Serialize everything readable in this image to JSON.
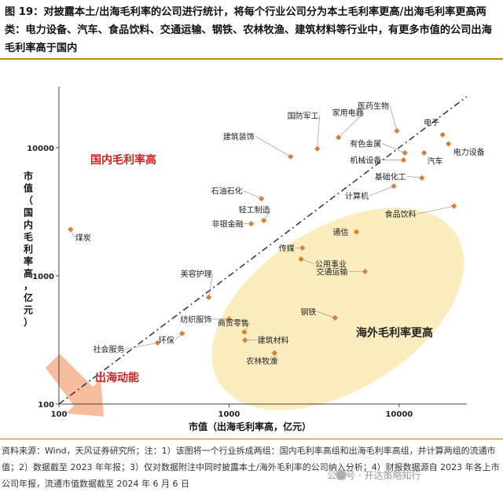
{
  "header": {
    "title": "图 19：对披露本土/出海毛利率的公司进行统计，将每个行业公司分为本土毛利率更高/出海毛利率更高两类：电力设备、汽车、食品饮料、交通运输、钢铁、农林牧渔、建筑材料等行业中，有更多市值的公司出海毛利率高于国内"
  },
  "chart_data": {
    "type": "scatter",
    "x_scale": "log",
    "y_scale": "log",
    "xlim": [
      100,
      25000
    ],
    "ylim": [
      100,
      30000
    ],
    "xlabel": "市值（出海毛利率高，亿元）",
    "ylabel": "市值（国内毛利率高，亿元）",
    "x_ticks": [
      {
        "value": 100,
        "label": "100"
      },
      {
        "value": 1000,
        "label": "1000"
      },
      {
        "value": 10000,
        "label": "10000"
      }
    ],
    "y_ticks": [
      {
        "value": 100,
        "label": "100"
      },
      {
        "value": 1000,
        "label": "1000"
      },
      {
        "value": 10000,
        "label": "10000"
      }
    ],
    "points": [
      {
        "name": "国防军工",
        "x": 3300,
        "y": 9800
      },
      {
        "name": "家用电器",
        "x": 4400,
        "y": 12000
      },
      {
        "name": "医药生物",
        "x": 9700,
        "y": 13500
      },
      {
        "name": "电子",
        "x": 18000,
        "y": 12600
      },
      {
        "name": "电力设备",
        "x": 19500,
        "y": 10700
      },
      {
        "name": "建筑装饰",
        "x": 2300,
        "y": 8500
      },
      {
        "name": "有色金属",
        "x": 10800,
        "y": 9100
      },
      {
        "name": "机械设备",
        "x": 10600,
        "y": 8000
      },
      {
        "name": "汽车",
        "x": 14000,
        "y": 9100
      },
      {
        "name": "基础化工",
        "x": 13600,
        "y": 5800
      },
      {
        "name": "计算机",
        "x": 9300,
        "y": 5000
      },
      {
        "name": "石油石化",
        "x": 1550,
        "y": 4000
      },
      {
        "name": "轻工制造",
        "x": 1600,
        "y": 2700
      },
      {
        "name": "非银金融",
        "x": 1350,
        "y": 2550
      },
      {
        "name": "食品饮料",
        "x": 21000,
        "y": 3500
      },
      {
        "name": "通信",
        "x": 5600,
        "y": 2200
      },
      {
        "name": "煤炭",
        "x": 117,
        "y": 2300
      },
      {
        "name": "传媒",
        "x": 2700,
        "y": 1650
      },
      {
        "name": "公用事业",
        "x": 2650,
        "y": 1350
      },
      {
        "name": "交通运输",
        "x": 6300,
        "y": 1080
      },
      {
        "name": "美容护理",
        "x": 760,
        "y": 680
      },
      {
        "name": "钢铁",
        "x": 4200,
        "y": 470
      },
      {
        "name": "纺织服饰",
        "x": 1000,
        "y": 460
      },
      {
        "name": "商贸零售",
        "x": 1230,
        "y": 365
      },
      {
        "name": "建筑材料",
        "x": 1240,
        "y": 315
      },
      {
        "name": "环保",
        "x": 530,
        "y": 355
      },
      {
        "name": "社会服务",
        "x": 380,
        "y": 300
      },
      {
        "name": "农林牧渔",
        "x": 1850,
        "y": 250
      }
    ],
    "annotations": {
      "domestic_higher": "国内毛利率高",
      "overseas_higher": "海外毛利率更高",
      "momentum": "出海动能"
    },
    "colors": {
      "marker": "#e07b2a",
      "diagonal": "#333333",
      "ellipse": "#fbe7a8",
      "domestic_label": "#d81e1e",
      "momentum_label": "#d81e1e",
      "arrow": "#f4b08a"
    }
  },
  "footer": {
    "source": "资料来源：Wind，天风证券研究所；注：1）该图将一个行业拆成两组：国内毛利率高组和出海毛利率高组，并计算两组的流通市值；2）数据截至 2023 年年报；3）仅对数据附注中同时披露本土/海外毛利率的公司纳入分析；4）财报数据源自 2023 年各上市公司年报，流通市值数据截至 2024 年 6 月 6 日",
    "watermark": "公众号 · 开达策略知行"
  }
}
